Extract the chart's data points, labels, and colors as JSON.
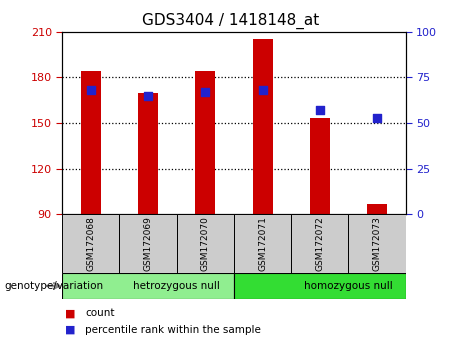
{
  "title": "GDS3404 / 1418148_at",
  "samples": [
    "GSM172068",
    "GSM172069",
    "GSM172070",
    "GSM172071",
    "GSM172072",
    "GSM172073"
  ],
  "counts": [
    184,
    170,
    184,
    205,
    153,
    97
  ],
  "percentiles": [
    68,
    65,
    67,
    68,
    57,
    53
  ],
  "ylim_left": [
    90,
    210
  ],
  "ylim_right": [
    0,
    100
  ],
  "yticks_left": [
    90,
    120,
    150,
    180,
    210
  ],
  "yticks_right": [
    0,
    25,
    50,
    75,
    100
  ],
  "bar_color": "#cc0000",
  "scatter_color": "#2222cc",
  "bar_bottom": 90,
  "groups": [
    {
      "label": "hetrozygous null",
      "start": 0,
      "end": 3,
      "color": "#90ee90"
    },
    {
      "label": "homozygous null",
      "start": 3,
      "end": 6,
      "color": "#33dd33"
    }
  ],
  "group_label_prefix": "genotype/variation",
  "legend_count_label": "count",
  "legend_pct_label": "percentile rank within the sample",
  "tick_color_left": "#cc0000",
  "tick_color_right": "#2222cc",
  "bar_width": 0.35,
  "scatter_size": 35,
  "x_tick_bg": "#cccccc"
}
